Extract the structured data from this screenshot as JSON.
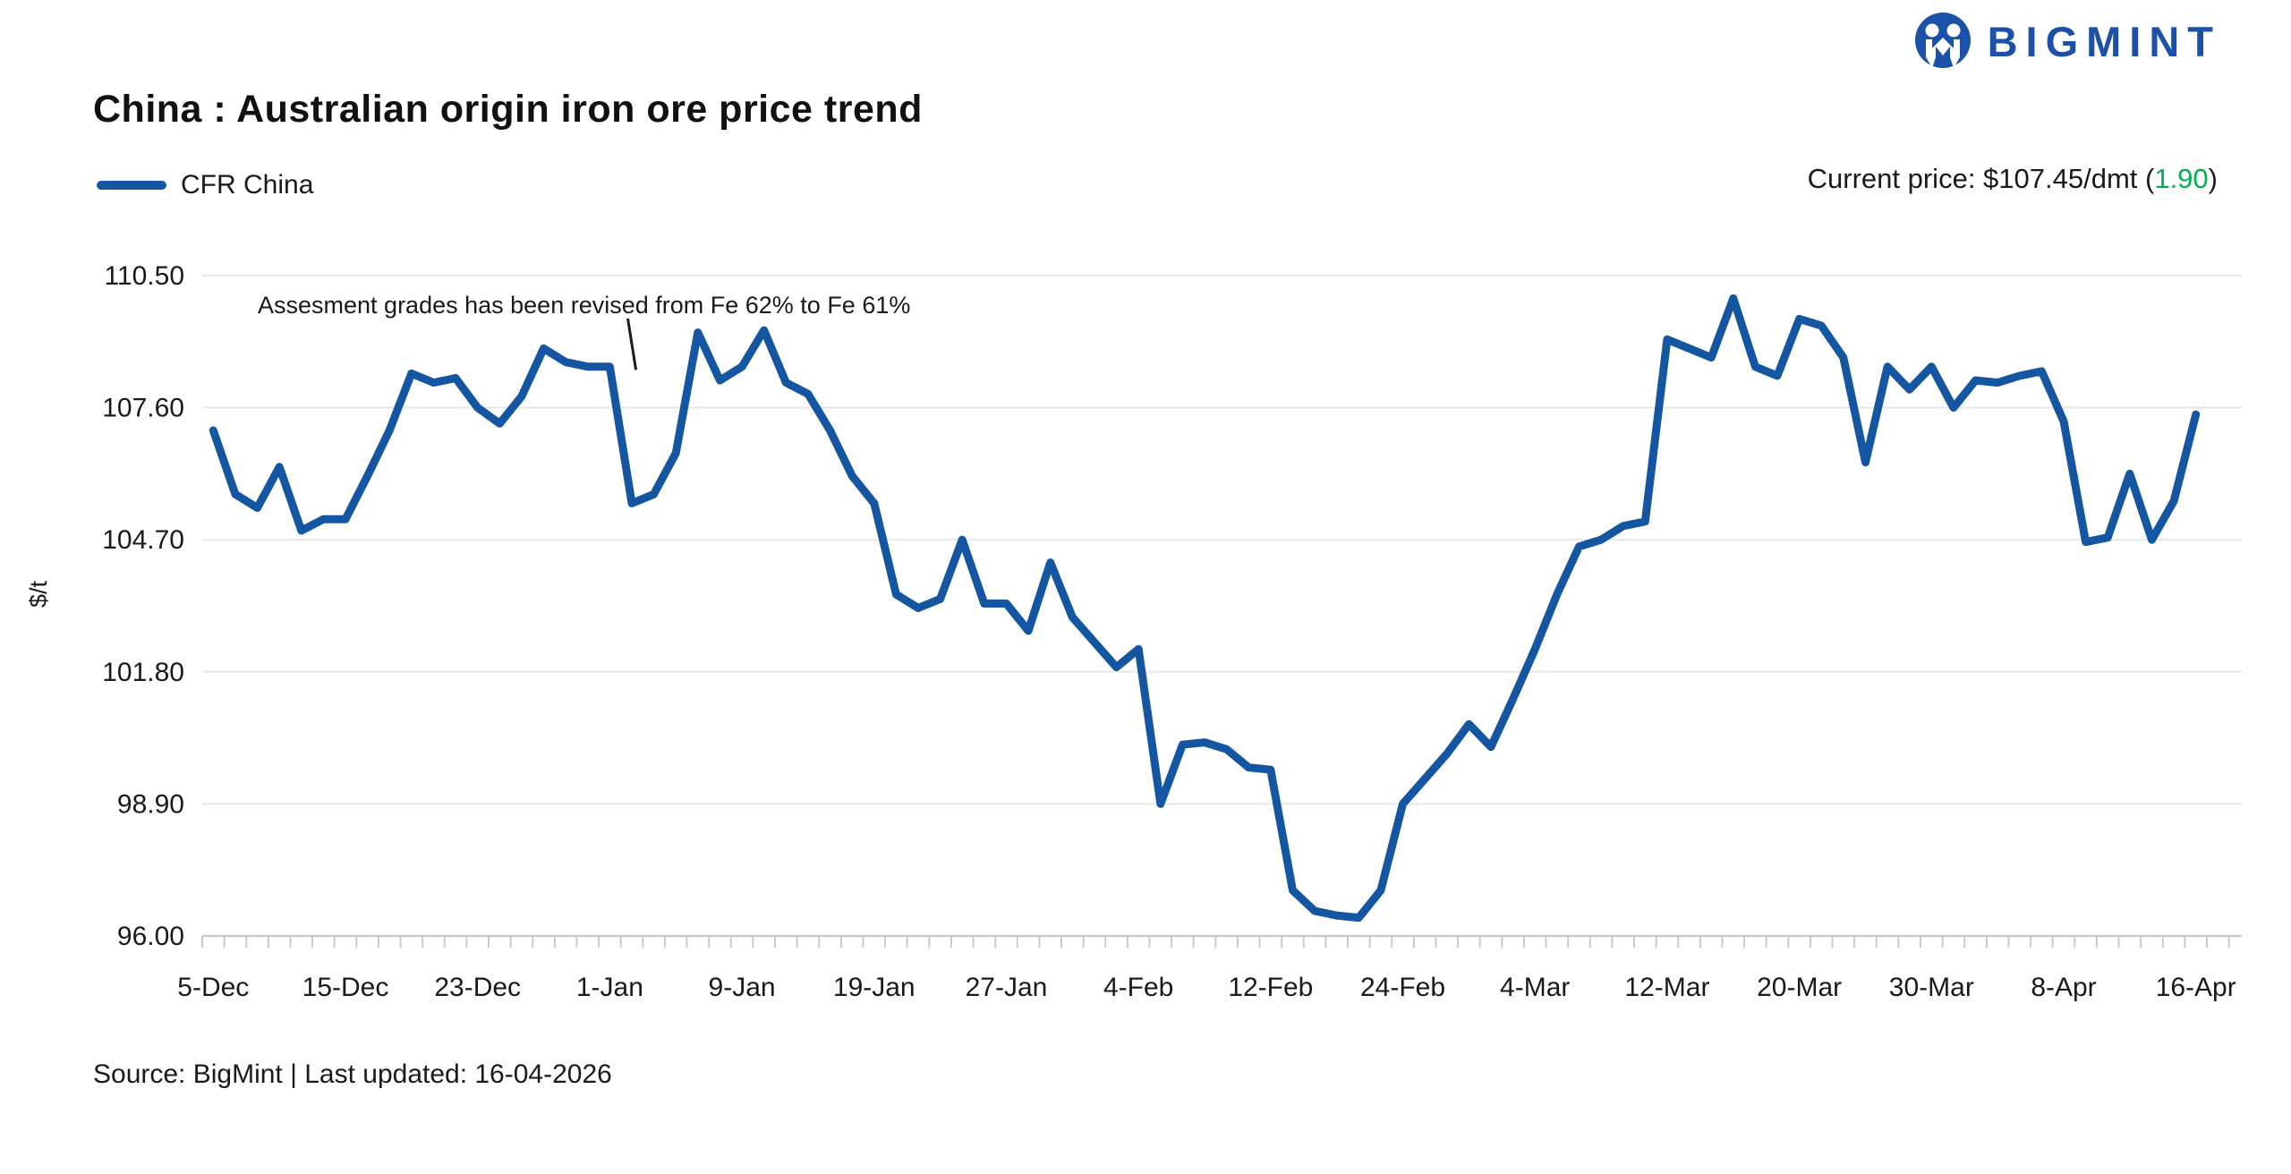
{
  "header": {
    "logo_text": "BIGMINT",
    "title": "China : Australian origin iron ore price trend",
    "legend_label": "CFR China",
    "current_price_prefix": "Current price: $107.45/dmt (",
    "current_price_change": "1.90",
    "current_price_suffix": ")"
  },
  "footer": {
    "source_line": "Source: BigMint | Last updated: 16-04-2026"
  },
  "colors": {
    "line": "#1556A3",
    "brand": "#1B51A8",
    "change_green": "#00B050",
    "grid": "#E8E8E8",
    "axis": "#C9C9C9",
    "text": "#1A1A1A"
  },
  "chart_data": {
    "type": "line",
    "title": "China : Australian origin iron ore price trend",
    "ylabel": "$/t",
    "xlabel": "",
    "ylim": [
      96.0,
      110.5
    ],
    "y_ticks": [
      110.5,
      107.6,
      104.7,
      101.8,
      98.9,
      96.0
    ],
    "grid": "horizontal",
    "legend_position": "top-left",
    "x_tick_labels": [
      "5-Dec",
      "15-Dec",
      "23-Dec",
      "1-Jan",
      "9-Jan",
      "19-Jan",
      "27-Jan",
      "4-Feb",
      "12-Feb",
      "24-Feb",
      "4-Mar",
      "12-Mar",
      "20-Mar",
      "30-Mar",
      "8-Apr",
      "16-Apr"
    ],
    "x_tick_label_indices": [
      0,
      6,
      12,
      18,
      24,
      30,
      36,
      42,
      48,
      54,
      60,
      66,
      72,
      78,
      84,
      90
    ],
    "series": [
      {
        "name": "CFR China",
        "values": [
          107.1,
          105.7,
          105.4,
          106.3,
          104.9,
          105.15,
          105.15,
          106.1,
          107.1,
          108.35,
          108.15,
          108.25,
          107.6,
          107.25,
          107.85,
          108.9,
          108.6,
          108.5,
          108.5,
          105.5,
          105.7,
          106.6,
          109.25,
          108.2,
          108.5,
          109.3,
          108.15,
          107.9,
          107.1,
          106.1,
          105.5,
          103.5,
          103.2,
          103.4,
          104.7,
          103.3,
          103.3,
          102.7,
          104.2,
          103.0,
          102.45,
          101.9,
          102.3,
          98.9,
          100.2,
          100.25,
          100.1,
          99.7,
          99.65,
          97.0,
          96.55,
          96.45,
          96.4,
          97.0,
          98.9,
          99.45,
          100.0,
          100.65,
          100.15,
          101.2,
          102.3,
          103.5,
          104.55,
          104.7,
          105.0,
          105.1,
          109.1,
          108.9,
          108.7,
          110.0,
          108.5,
          108.3,
          109.55,
          109.4,
          108.7,
          106.4,
          108.5,
          108.0,
          108.5,
          107.6,
          108.2,
          108.15,
          108.3,
          108.4,
          107.3,
          104.65,
          104.75,
          106.15,
          104.7,
          105.55,
          107.45
        ]
      }
    ],
    "annotation": {
      "text": "Assesment grades has been revised from Fe 62% to Fe 61%"
    }
  }
}
